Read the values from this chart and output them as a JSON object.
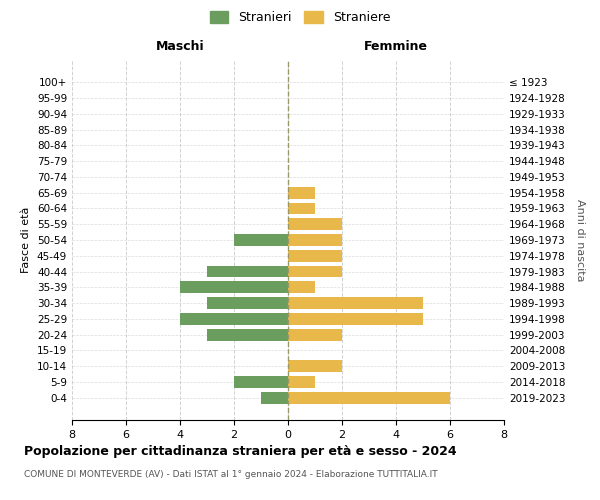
{
  "age_groups": [
    "100+",
    "95-99",
    "90-94",
    "85-89",
    "80-84",
    "75-79",
    "70-74",
    "65-69",
    "60-64",
    "55-59",
    "50-54",
    "45-49",
    "40-44",
    "35-39",
    "30-34",
    "25-29",
    "20-24",
    "15-19",
    "10-14",
    "5-9",
    "0-4"
  ],
  "birth_years": [
    "≤ 1923",
    "1924-1928",
    "1929-1933",
    "1934-1938",
    "1939-1943",
    "1944-1948",
    "1949-1953",
    "1954-1958",
    "1959-1963",
    "1964-1968",
    "1969-1973",
    "1974-1978",
    "1979-1983",
    "1984-1988",
    "1989-1993",
    "1994-1998",
    "1999-2003",
    "2004-2008",
    "2009-2013",
    "2014-2018",
    "2019-2023"
  ],
  "maschi": [
    0,
    0,
    0,
    0,
    0,
    0,
    0,
    0,
    0,
    0,
    2,
    0,
    3,
    4,
    3,
    4,
    3,
    0,
    0,
    2,
    1
  ],
  "femmine": [
    0,
    0,
    0,
    0,
    0,
    0,
    0,
    1,
    1,
    2,
    2,
    2,
    2,
    1,
    5,
    5,
    2,
    0,
    2,
    1,
    6
  ],
  "maschi_color": "#6b9e5e",
  "femmine_color": "#e8b84b",
  "title": "Popolazione per cittadinanza straniera per età e sesso - 2024",
  "subtitle": "COMUNE DI MONTEVERDE (AV) - Dati ISTAT al 1° gennaio 2024 - Elaborazione TUTTITALIA.IT",
  "xlabel_left": "Maschi",
  "xlabel_right": "Femmine",
  "ylabel_left": "Fasce di età",
  "ylabel_right": "Anni di nascita",
  "legend_maschi": "Stranieri",
  "legend_femmine": "Straniere",
  "xlim": 8,
  "background_color": "#ffffff",
  "grid_color": "#cccccc"
}
